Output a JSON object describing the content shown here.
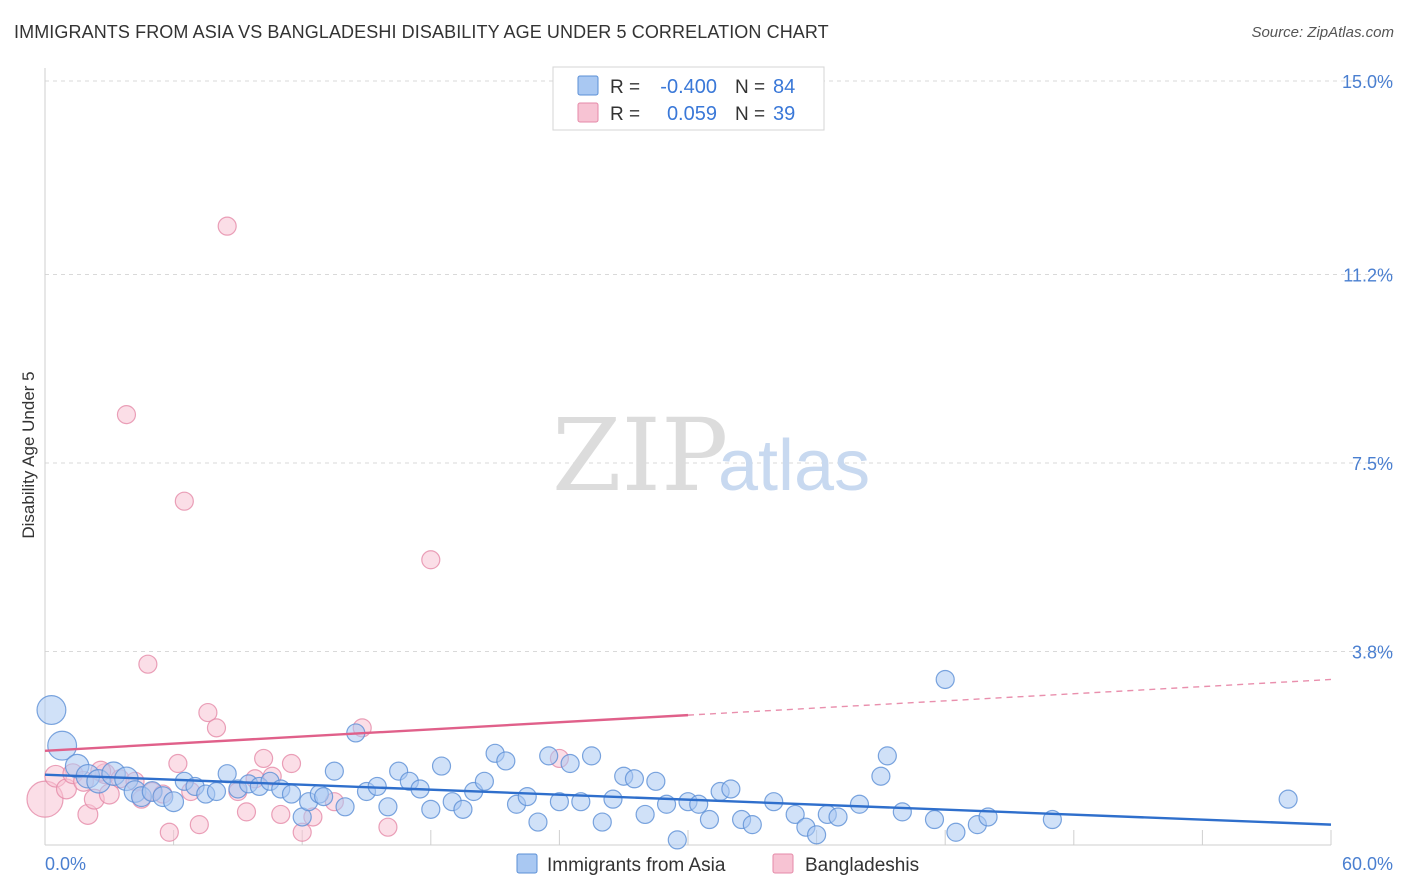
{
  "header": {
    "title": "IMMIGRANTS FROM ASIA VS BANGLADESHI DISABILITY AGE UNDER 5 CORRELATION CHART",
    "source": "Source: ZipAtlas.com"
  },
  "watermark": {
    "zip": "ZIP",
    "atlas": "atlas"
  },
  "legend": {
    "rows": [
      {
        "r_label": "R =",
        "r_value": "-0.400",
        "n_label": "N =",
        "n_value": "84"
      },
      {
        "r_label": "R =",
        "r_value": "0.059",
        "n_label": "N =",
        "n_value": "39"
      }
    ]
  },
  "bottom_legend": {
    "asia": "Immigrants from Asia",
    "bangladeshi": "Bangladeshis"
  },
  "colors": {
    "asia_fill": "#a9c8f2",
    "asia_stroke": "#5b8fd6",
    "asia_line": "#2f6fcc",
    "bangla_fill": "#f7c3d3",
    "bangla_stroke": "#e58aa8",
    "bangla_line": "#e0608a",
    "tick_text": "#4a7fd0"
  },
  "chart_data": {
    "type": "scatter",
    "title": "IMMIGRANTS FROM ASIA VS BANGLADESHI DISABILITY AGE UNDER 5 CORRELATION CHART",
    "xlabel": "",
    "ylabel": "Disability Age Under 5",
    "xlim": [
      0,
      60
    ],
    "ylim": [
      0,
      15.5
    ],
    "x_tick_labels": [
      "0.0%",
      "60.0%"
    ],
    "y_ticks": [
      {
        "value": 3.8,
        "label": "3.8%"
      },
      {
        "value": 7.5,
        "label": "7.5%"
      },
      {
        "value": 11.2,
        "label": "11.2%"
      },
      {
        "value": 15.0,
        "label": "15.0%"
      }
    ],
    "series": [
      {
        "name": "Immigrants from Asia",
        "r": -0.4,
        "n": 84,
        "trend": {
          "x0": 0,
          "y0": 1.38,
          "x1": 60,
          "y1": 0.4,
          "solid_to": 60
        },
        "points": [
          [
            0.3,
            2.65,
            1.6
          ],
          [
            0.8,
            1.95,
            1.6
          ],
          [
            1.5,
            1.55,
            1.3
          ],
          [
            2.0,
            1.35,
            1.3
          ],
          [
            2.5,
            1.25,
            1.3
          ],
          [
            3.2,
            1.4,
            1.3
          ],
          [
            3.8,
            1.3,
            1.3
          ],
          [
            4.2,
            1.05,
            1.2
          ],
          [
            4.5,
            0.95,
            1.1
          ],
          [
            5.0,
            1.05,
            1.1
          ],
          [
            5.5,
            0.95,
            1.1
          ],
          [
            6.0,
            0.85,
            1.1
          ],
          [
            6.5,
            1.25,
            1.0
          ],
          [
            7.0,
            1.15,
            1.0
          ],
          [
            7.5,
            1.0,
            1.0
          ],
          [
            8.0,
            1.05,
            1.0
          ],
          [
            8.5,
            1.4,
            1.0
          ],
          [
            9.0,
            1.1,
            1.0
          ],
          [
            9.5,
            1.2,
            1.0
          ],
          [
            10.0,
            1.15,
            1.0
          ],
          [
            10.5,
            1.25,
            1.0
          ],
          [
            11.0,
            1.1,
            1.0
          ],
          [
            11.5,
            1.0,
            1.0
          ],
          [
            12.0,
            0.55,
            1.0
          ],
          [
            12.3,
            0.85,
            1.0
          ],
          [
            12.8,
            1.0,
            1.0
          ],
          [
            13.0,
            0.95,
            1.0
          ],
          [
            13.5,
            1.45,
            1.0
          ],
          [
            14.0,
            0.75,
            1.0
          ],
          [
            14.5,
            2.2,
            1.0
          ],
          [
            15.0,
            1.05,
            1.0
          ],
          [
            15.5,
            1.15,
            1.0
          ],
          [
            16.0,
            0.75,
            1.0
          ],
          [
            16.5,
            1.45,
            1.0
          ],
          [
            17.0,
            1.25,
            1.0
          ],
          [
            17.5,
            1.1,
            1.0
          ],
          [
            18.0,
            0.7,
            1.0
          ],
          [
            18.5,
            1.55,
            1.0
          ],
          [
            19.0,
            0.85,
            1.0
          ],
          [
            19.5,
            0.7,
            1.0
          ],
          [
            20.0,
            1.05,
            1.0
          ],
          [
            20.5,
            1.25,
            1.0
          ],
          [
            21.0,
            1.8,
            1.0
          ],
          [
            21.5,
            1.65,
            1.0
          ],
          [
            22.0,
            0.8,
            1.0
          ],
          [
            22.5,
            0.95,
            1.0
          ],
          [
            23.0,
            0.45,
            1.0
          ],
          [
            23.5,
            1.75,
            1.0
          ],
          [
            24.0,
            0.85,
            1.0
          ],
          [
            24.5,
            1.6,
            1.0
          ],
          [
            25.0,
            0.85,
            1.0
          ],
          [
            25.5,
            1.75,
            1.0
          ],
          [
            26.0,
            0.45,
            1.0
          ],
          [
            26.5,
            0.9,
            1.0
          ],
          [
            27.0,
            1.35,
            1.0
          ],
          [
            27.5,
            1.3,
            1.0
          ],
          [
            28.0,
            0.6,
            1.0
          ],
          [
            28.5,
            1.25,
            1.0
          ],
          [
            29.0,
            0.8,
            1.0
          ],
          [
            29.5,
            0.1,
            1.0
          ],
          [
            30.0,
            0.85,
            1.0
          ],
          [
            30.5,
            0.8,
            1.0
          ],
          [
            31.0,
            0.5,
            1.0
          ],
          [
            31.5,
            1.05,
            1.0
          ],
          [
            32.0,
            1.1,
            1.0
          ],
          [
            32.5,
            0.5,
            1.0
          ],
          [
            33.0,
            0.4,
            1.0
          ],
          [
            34.0,
            0.85,
            1.0
          ],
          [
            35.0,
            0.6,
            1.0
          ],
          [
            35.5,
            0.35,
            1.0
          ],
          [
            36.0,
            0.2,
            1.0
          ],
          [
            36.5,
            0.6,
            1.0
          ],
          [
            37.0,
            0.55,
            1.0
          ],
          [
            38.0,
            0.8,
            1.0
          ],
          [
            39.0,
            1.35,
            1.0
          ],
          [
            39.3,
            1.75,
            1.0
          ],
          [
            40.0,
            0.65,
            1.0
          ],
          [
            41.5,
            0.5,
            1.0
          ],
          [
            42.0,
            3.25,
            1.0
          ],
          [
            42.5,
            0.25,
            1.0
          ],
          [
            43.5,
            0.4,
            1.0
          ],
          [
            44.0,
            0.55,
            1.0
          ],
          [
            47.0,
            0.5,
            1.0
          ],
          [
            58.0,
            0.9,
            1.0
          ]
        ]
      },
      {
        "name": "Bangladeshis",
        "r": 0.059,
        "n": 39,
        "trend": {
          "x0": 0,
          "y0": 1.85,
          "x1": 60,
          "y1": 3.25,
          "solid_to": 30
        },
        "points": [
          [
            0.0,
            0.9,
            2.0
          ],
          [
            0.5,
            1.35,
            1.2
          ],
          [
            1.0,
            1.1,
            1.1
          ],
          [
            1.3,
            1.4,
            1.1
          ],
          [
            1.8,
            1.25,
            1.1
          ],
          [
            2.0,
            0.6,
            1.1
          ],
          [
            2.3,
            0.9,
            1.1
          ],
          [
            2.8,
            1.4,
            1.1
          ],
          [
            3.0,
            1.0,
            1.1
          ],
          [
            3.5,
            1.3,
            1.0
          ],
          [
            3.8,
            8.45,
            1.0
          ],
          [
            4.2,
            1.25,
            1.0
          ],
          [
            4.5,
            0.9,
            1.0
          ],
          [
            4.8,
            3.55,
            1.0
          ],
          [
            5.0,
            1.05,
            1.0
          ],
          [
            5.5,
            1.0,
            1.0
          ],
          [
            5.8,
            0.25,
            1.0
          ],
          [
            6.2,
            1.6,
            1.0
          ],
          [
            6.5,
            6.75,
            1.0
          ],
          [
            6.8,
            1.05,
            1.0
          ],
          [
            7.2,
            0.4,
            1.0
          ],
          [
            7.6,
            2.6,
            1.0
          ],
          [
            8.0,
            2.3,
            1.0
          ],
          [
            8.5,
            12.15,
            1.0
          ],
          [
            9.0,
            1.05,
            1.0
          ],
          [
            9.4,
            0.65,
            1.0
          ],
          [
            9.8,
            1.3,
            1.0
          ],
          [
            10.2,
            1.7,
            1.0
          ],
          [
            10.6,
            1.35,
            1.0
          ],
          [
            11.0,
            0.6,
            1.0
          ],
          [
            11.5,
            1.6,
            1.0
          ],
          [
            12.0,
            0.25,
            1.0
          ],
          [
            12.5,
            0.55,
            1.0
          ],
          [
            13.5,
            0.85,
            1.0
          ],
          [
            14.8,
            2.3,
            1.0
          ],
          [
            16.0,
            0.35,
            1.0
          ],
          [
            18.0,
            5.6,
            1.0
          ],
          [
            24.0,
            1.7,
            1.0
          ],
          [
            2.6,
            1.45,
            1.1
          ]
        ]
      }
    ]
  }
}
